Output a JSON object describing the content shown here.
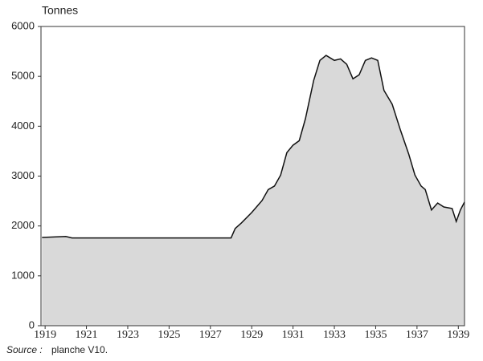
{
  "chart_data": {
    "type": "area",
    "y_axis_label": "Tonnes",
    "source_label": "Source :",
    "source_text": "planche V10.",
    "x": [
      1918.85,
      1920.0,
      1920.3,
      1928.0,
      1928.2,
      1928.5,
      1929.0,
      1929.5,
      1929.8,
      1930.1,
      1930.4,
      1930.7,
      1931.0,
      1931.3,
      1931.6,
      1932.0,
      1932.3,
      1932.6,
      1933.0,
      1933.3,
      1933.6,
      1933.9,
      1934.2,
      1934.5,
      1934.8,
      1935.1,
      1935.4,
      1935.8,
      1936.2,
      1936.6,
      1936.9,
      1937.2,
      1937.4,
      1937.7,
      1938.0,
      1938.3,
      1938.7,
      1938.9,
      1939.1,
      1939.3
    ],
    "series": [
      {
        "name": "Tonnes",
        "color": "#d9d9d9",
        "values": [
          1770,
          1790,
          1760,
          1760,
          1950,
          2060,
          2270,
          2510,
          2730,
          2800,
          3020,
          3470,
          3620,
          3710,
          4150,
          4920,
          5320,
          5420,
          5320,
          5350,
          5240,
          4950,
          5030,
          5320,
          5370,
          5320,
          4720,
          4440,
          3920,
          3440,
          3020,
          2800,
          2730,
          2320,
          2460,
          2380,
          2350,
          2090,
          2320,
          2480
        ]
      }
    ],
    "xlim": [
      1918.8,
      1939.3
    ],
    "xticks": [
      1919,
      1921,
      1923,
      1925,
      1927,
      1929,
      1931,
      1933,
      1935,
      1937,
      1939
    ],
    "ylim": [
      0,
      6000
    ],
    "yticks": [
      0,
      1000,
      2000,
      3000,
      4000,
      5000,
      6000
    ]
  }
}
